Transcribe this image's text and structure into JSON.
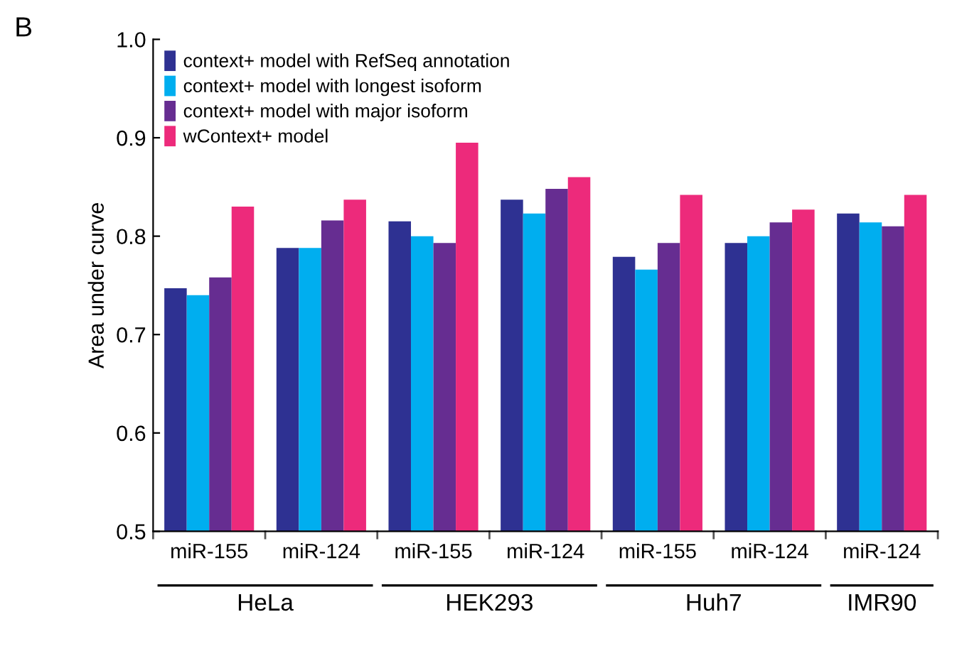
{
  "chart_data": {
    "type": "bar",
    "ylabel": "Area under curve",
    "categories": [
      "miR-155",
      "miR-124",
      "miR-155",
      "miR-124",
      "miR-155",
      "miR-124",
      "miR-124"
    ],
    "series": [
      {
        "name": "context+ model with RefSeq annotation",
        "color": "#2e3192",
        "values": [
          0.747,
          0.788,
          0.815,
          0.837,
          0.779,
          0.793,
          0.823
        ]
      },
      {
        "name": "context+ model with longest isoform",
        "color": "#00aeef",
        "values": [
          0.74,
          0.788,
          0.8,
          0.823,
          0.766,
          0.8,
          0.814
        ]
      },
      {
        "name": "context+ model with major isoform",
        "color": "#662d91",
        "values": [
          0.758,
          0.816,
          0.793,
          0.848,
          0.793,
          0.814,
          0.81
        ]
      },
      {
        "name": "wContext+ model",
        "color": "#ed2a7b",
        "values": [
          0.83,
          0.837,
          0.895,
          0.86,
          0.842,
          0.827,
          0.842
        ]
      }
    ],
    "ylim": [
      0.5,
      1.0
    ],
    "yticks": [
      0.5,
      0.6,
      0.7,
      0.8,
      0.9,
      {
        "value": 1,
        "label": "1.0"
      }
    ],
    "grid": false,
    "legend": "top left",
    "annotations": [
      "B",
      "HeLa",
      "HEK293",
      "Huh7",
      "IMR90"
    ]
  }
}
